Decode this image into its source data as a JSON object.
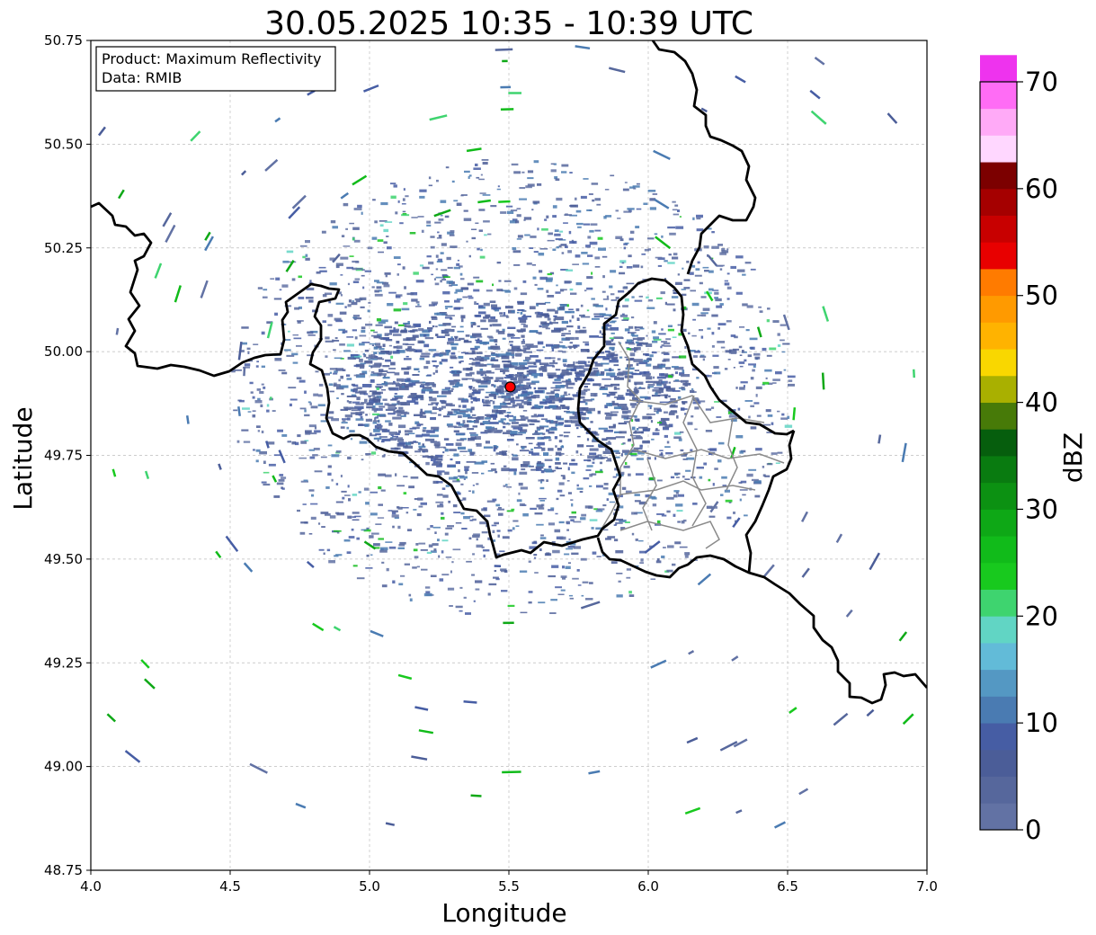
{
  "title": "30.05.2025 10:35 - 10:39 UTC",
  "map": {
    "xlabel": "Longitude",
    "ylabel": "Latitude",
    "xlim": [
      4.0,
      7.0
    ],
    "ylim": [
      48.75,
      50.75
    ],
    "x_ticks": [
      "4.0",
      "4.5",
      "5.0",
      "5.5",
      "6.0",
      "6.5",
      "7.0"
    ],
    "y_ticks": [
      "50.75",
      "50.50",
      "50.25",
      "50.00",
      "49.75",
      "49.50",
      "49.25",
      "49.00",
      "48.75"
    ],
    "grid": true,
    "radar_site": {
      "lon": 5.505,
      "lat": 49.915,
      "marker_color": "#ff0000"
    }
  },
  "info_box": {
    "product": "Product: Maximum Reflectivity",
    "source": "Data: RMIB"
  },
  "colorbar": {
    "label": "dBZ",
    "ticks": [
      "0",
      "10",
      "20",
      "30",
      "40",
      "50",
      "60",
      "70"
    ],
    "range": [
      0,
      70
    ],
    "step": 2.5,
    "colors": [
      "#6272a4",
      "#56679c",
      "#4b5d98",
      "#465da4",
      "#4a7bb2",
      "#5498c3",
      "#62bbd8",
      "#61d5c4",
      "#3ed46f",
      "#18c91e",
      "#11bb1a",
      "#0ea816",
      "#0c9112",
      "#097b10",
      "#065e0d",
      "#477a08",
      "#a9b000",
      "#f9d700",
      "#ffb300",
      "#ff9a00",
      "#ff7b00",
      "#e80000",
      "#c80000",
      "#a50000",
      "#7c0000",
      "#ffd7ff",
      "#ffaaf7",
      "#ff6cf5",
      "#ee33ee"
    ]
  }
}
